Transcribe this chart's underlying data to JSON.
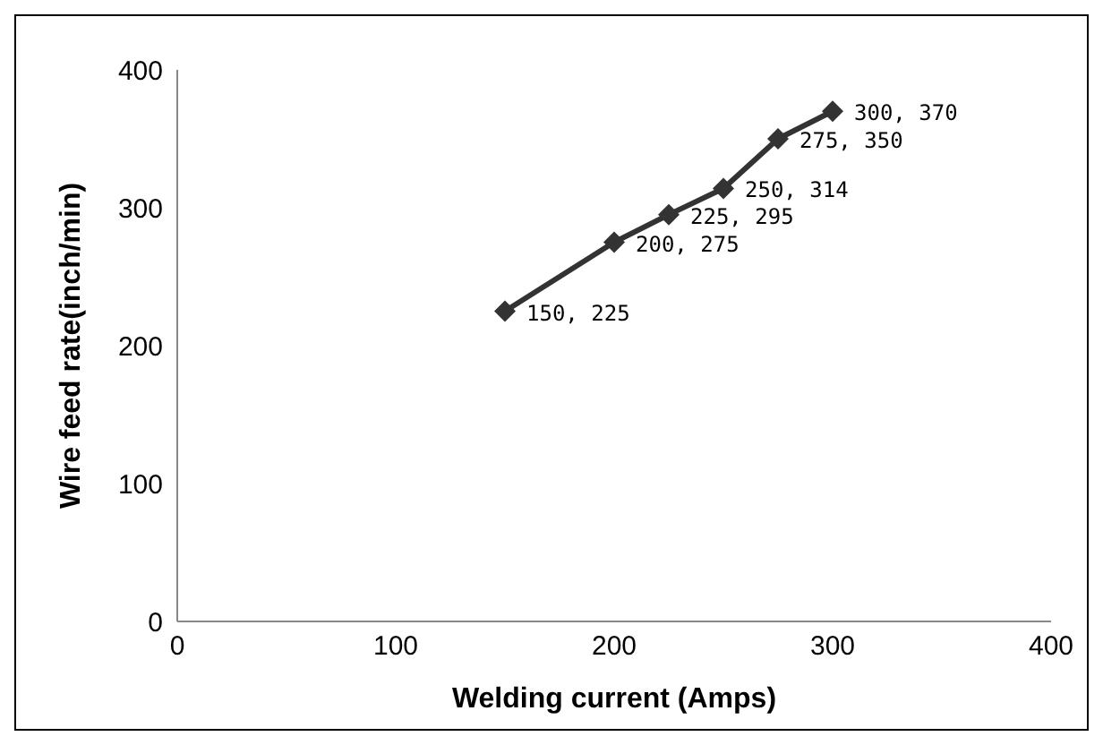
{
  "chart_data": {
    "type": "line",
    "xlabel": "Welding current (Amps)",
    "ylabel": "Wire feed rate(inch/min)",
    "x": [
      150,
      200,
      225,
      250,
      275,
      300
    ],
    "series": [
      {
        "color": "#333333",
        "values": [
          225,
          275,
          295,
          314,
          350,
          370
        ],
        "value_labels": [
          "150, 225",
          "200, 275",
          "225, 295",
          "250, 314",
          "275, 350",
          "300, 370"
        ]
      }
    ],
    "xlim": [
      0,
      400
    ],
    "xticks": [
      0,
      100,
      200,
      300,
      400
    ],
    "ylim": [
      0,
      400
    ],
    "yticks": [
      0,
      100,
      200,
      300,
      400
    ],
    "grid": false,
    "legend": false,
    "marker": "diamond",
    "line_style": "solid"
  }
}
